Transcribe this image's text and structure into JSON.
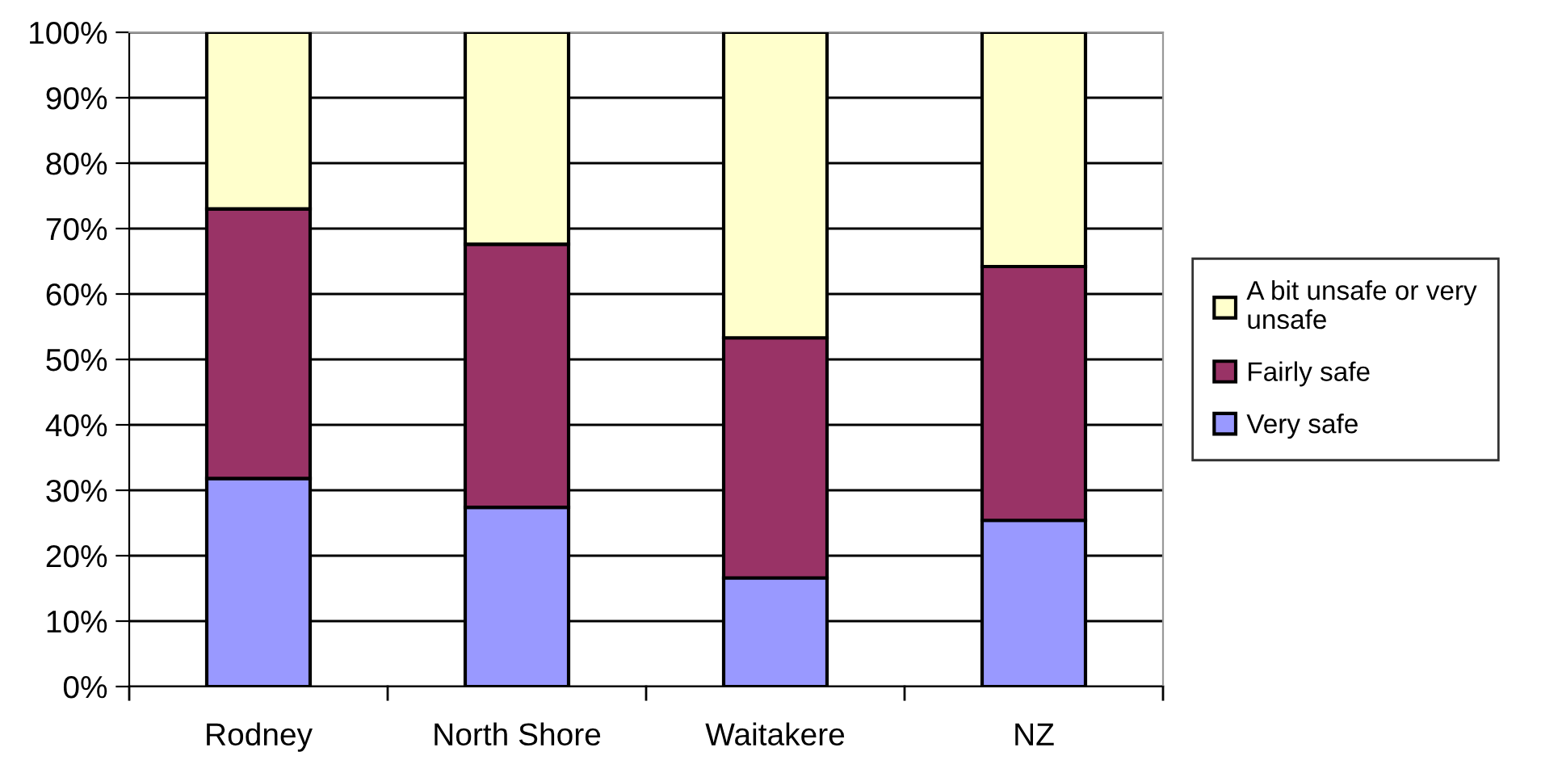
{
  "chart_data": {
    "type": "bar",
    "stacked": true,
    "categories": [
      "Rodney",
      "North Shore",
      "Waitakere",
      "NZ"
    ],
    "series": [
      {
        "name": "Very safe",
        "color": "#9999ff",
        "values": [
          31.8,
          27.4,
          16.6,
          25.4
        ]
      },
      {
        "name": "Fairly safe",
        "color": "#993366",
        "values": [
          41.2,
          40.2,
          36.7,
          38.8
        ]
      },
      {
        "name": "A bit unsafe or very\nunsafe",
        "color": "#ffffcc",
        "values": [
          27.0,
          32.4,
          46.7,
          35.8
        ]
      }
    ],
    "ylim": [
      0,
      100
    ],
    "yticks": [
      {
        "value": 0,
        "label": "0%"
      },
      {
        "value": 10,
        "label": "10%"
      },
      {
        "value": 20,
        "label": "20%"
      },
      {
        "value": 30,
        "label": "30%"
      },
      {
        "value": 40,
        "label": "40%"
      },
      {
        "value": 50,
        "label": "50%"
      },
      {
        "value": 60,
        "label": "60%"
      },
      {
        "value": 70,
        "label": "70%"
      },
      {
        "value": 80,
        "label": "80%"
      },
      {
        "value": 90,
        "label": "90%"
      },
      {
        "value": 100,
        "label": "100%"
      }
    ],
    "grid": "y",
    "legend": "right"
  }
}
